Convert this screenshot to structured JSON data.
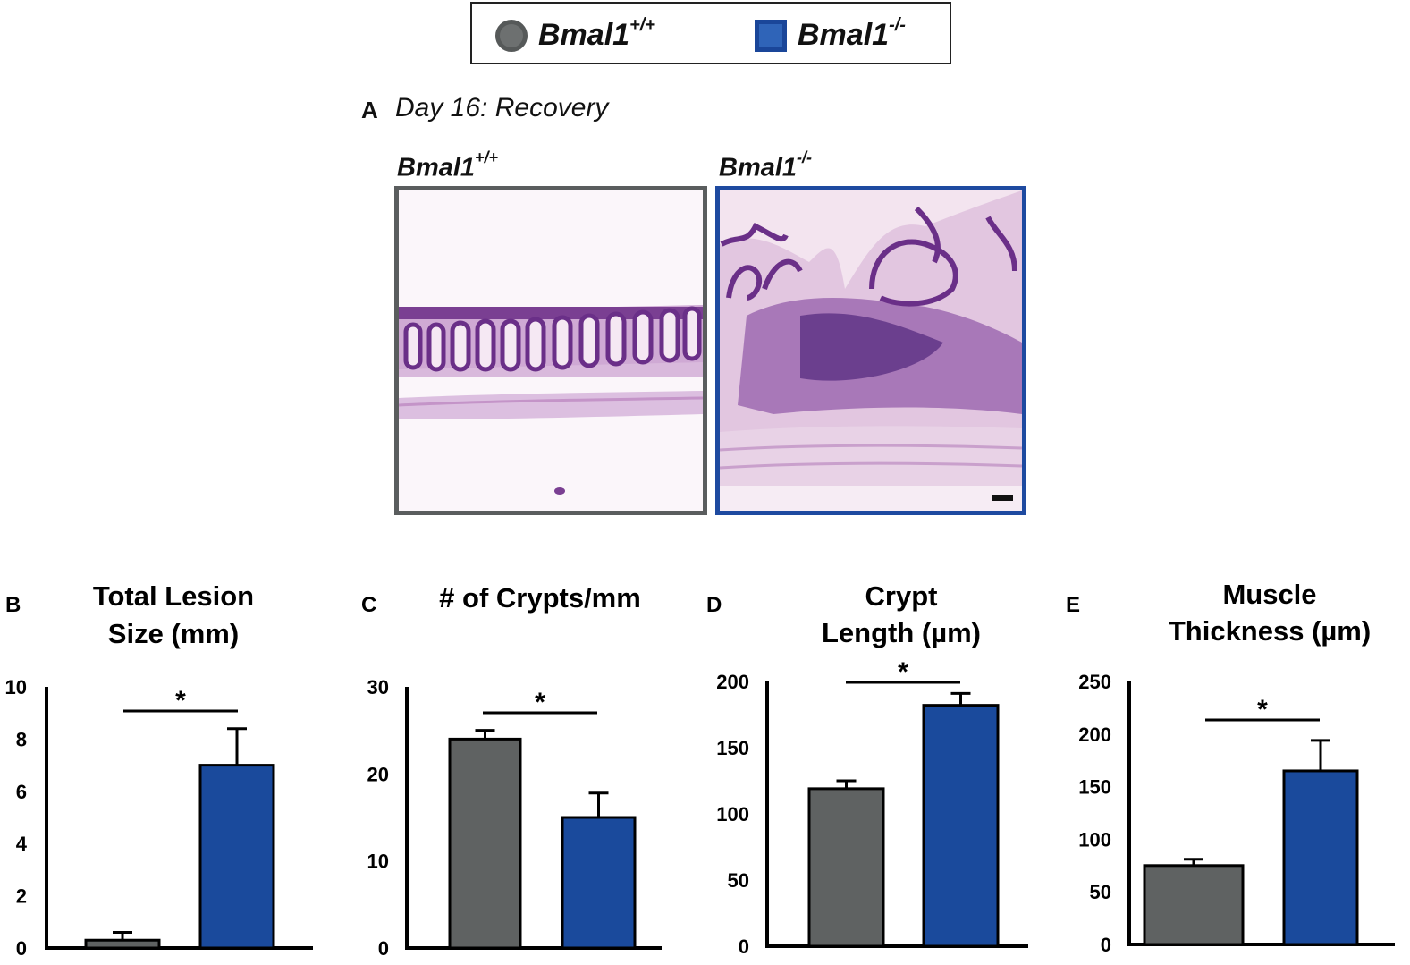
{
  "legend": {
    "items": [
      {
        "name": "Bmal1",
        "sup": "+/+",
        "color": "#6d7070"
      },
      {
        "name": "Bmal1",
        "sup": "-/-",
        "color": "#2f64b8"
      }
    ]
  },
  "panel_a": {
    "letter": "A",
    "title": "Day 16: Recovery",
    "images": [
      {
        "name": "Bmal1",
        "sup": "+/+"
      },
      {
        "name": "Bmal1",
        "sup": "-/-"
      }
    ]
  },
  "colors": {
    "wt": "#5f6262",
    "ko": "#1a4a9c",
    "wt_border": "#5a5d5e",
    "ko_border": "#1e4aa0"
  },
  "chart_data": [
    {
      "letter": "B",
      "type": "bar",
      "title_lines": [
        "Total Lesion",
        "Size (mm)"
      ],
      "categories": [
        "Bmal1+/+",
        "Bmal1-/-"
      ],
      "values": [
        0.3,
        7.0
      ],
      "errors": [
        0.3,
        1.4
      ],
      "ylim": [
        0,
        10
      ],
      "yticks": [
        "0",
        "2",
        "4",
        "6",
        "8",
        "10"
      ],
      "ytick_values": [
        0,
        2,
        4,
        6,
        8,
        10
      ],
      "significance": "*"
    },
    {
      "letter": "C",
      "type": "bar",
      "title_lines": [
        "# of Crypts/mm"
      ],
      "categories": [
        "Bmal1+/+",
        "Bmal1-/-"
      ],
      "values": [
        24,
        15
      ],
      "errors": [
        1.0,
        2.8
      ],
      "ylim": [
        0,
        30
      ],
      "yticks": [
        "0",
        "10",
        "20",
        "30"
      ],
      "ytick_values": [
        0,
        10,
        20,
        30
      ],
      "significance": "*"
    },
    {
      "letter": "D",
      "type": "bar",
      "title_lines": [
        "Crypt",
        "Length (µm)"
      ],
      "categories": [
        "Bmal1+/+",
        "Bmal1-/-"
      ],
      "values": [
        119,
        182
      ],
      "errors": [
        6,
        9
      ],
      "ylim": [
        0,
        200
      ],
      "yticks": [
        "0",
        "50",
        "100",
        "150",
        "200"
      ],
      "ytick_values": [
        0,
        50,
        100,
        150,
        200
      ],
      "significance": "*"
    },
    {
      "letter": "E",
      "type": "bar",
      "title_lines": [
        "Muscle",
        "Thickness (µm)"
      ],
      "categories": [
        "Bmal1+/+",
        "Bmal1-/-"
      ],
      "values": [
        75,
        165
      ],
      "errors": [
        6,
        29
      ],
      "ylim": [
        0,
        250
      ],
      "yticks": [
        "0",
        "50",
        "100",
        "150",
        "200",
        "250"
      ],
      "ytick_values": [
        0,
        50,
        100,
        150,
        200,
        250
      ],
      "significance": "*"
    }
  ]
}
